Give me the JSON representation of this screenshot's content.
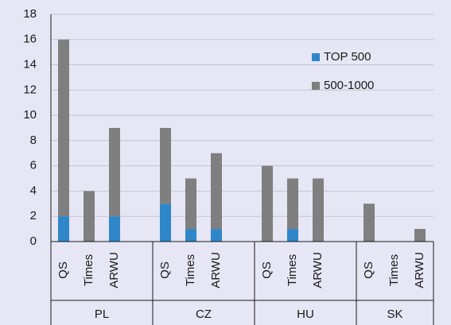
{
  "chart_data": {
    "type": "stacked_bar",
    "groups": [
      "PL",
      "CZ",
      "HU",
      "SK"
    ],
    "categories": [
      "QS",
      "Times",
      "ARWU",
      "QS",
      "Times",
      "ARWU",
      "QS",
      "Times",
      "ARWU",
      "QS",
      "Times",
      "ARWU"
    ],
    "series": [
      {
        "name": "TOP 500",
        "color": "#2f86c9",
        "values": [
          2,
          0,
          2,
          3,
          1,
          1,
          0,
          1,
          0,
          0,
          0,
          0
        ]
      },
      {
        "name": "500-1000",
        "color": "#7f7f7f",
        "values": [
          14,
          4,
          7,
          6,
          4,
          6,
          6,
          4,
          5,
          3,
          0,
          1
        ]
      }
    ],
    "ylim": [
      0,
      18
    ],
    "yticks": [
      0,
      2,
      4,
      6,
      8,
      10,
      12,
      14,
      16,
      18
    ],
    "grid": true,
    "legend": "upper right"
  }
}
